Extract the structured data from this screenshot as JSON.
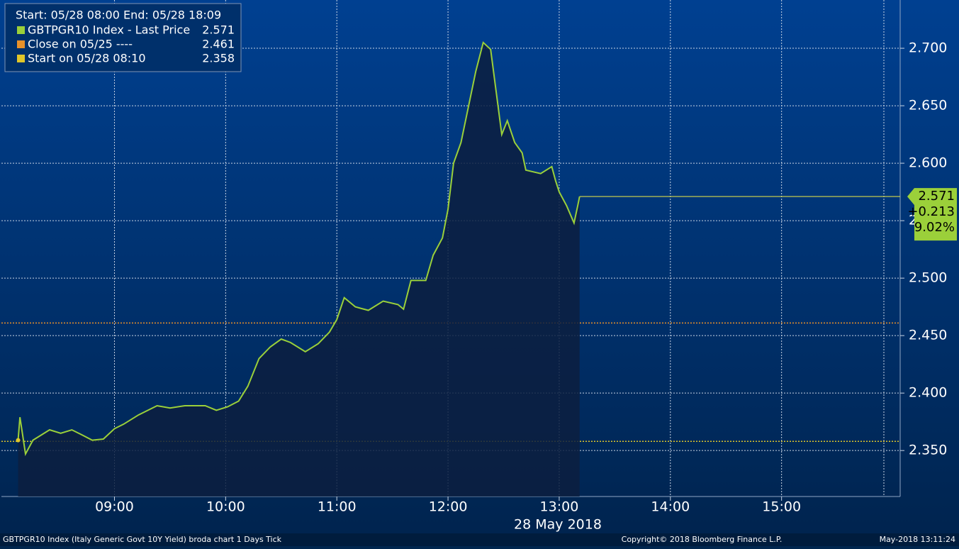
{
  "chart_data": {
    "type": "line",
    "legend_header": "Start: 05/28 08:00 End: 05/28 18:09",
    "x_label": "28 May 2018",
    "footer_left": "GBTPGR10 Index (Italy Generic Govt 10Y Yield) broda chart 1 Days  Tick",
    "footer_center": "Copyright© 2018 Bloomberg Finance L.P.",
    "footer_right": "May-2018 13:11:24",
    "xlim": [
      "07:59",
      "16:04"
    ],
    "xticks": [
      "09:00",
      "10:00",
      "11:00",
      "12:00",
      "13:00",
      "14:00",
      "15:00"
    ],
    "ylim": [
      2.31,
      2.742
    ],
    "yticks": [
      {
        "value": 2.35,
        "label": "2.350"
      },
      {
        "value": 2.4,
        "label": "2.400"
      },
      {
        "value": 2.45,
        "label": "2.450"
      },
      {
        "value": 2.5,
        "label": "2.500"
      },
      {
        "value": 2.55,
        "label": "2.550"
      },
      {
        "value": 2.6,
        "label": "2.600"
      },
      {
        "value": 2.65,
        "label": "2.650"
      },
      {
        "value": 2.7,
        "label": "2.700"
      }
    ],
    "grid": true,
    "series": [
      {
        "name": "GBTPGR10 Index - Last Price",
        "legend_value": 2.571,
        "color": "#9bd03a",
        "x": [
          "08:08",
          "08:09",
          "08:12",
          "08:16",
          "08:21",
          "08:25",
          "08:31",
          "08:37",
          "08:42",
          "08:48",
          "08:54",
          "09:00",
          "09:05",
          "09:13",
          "09:23",
          "09:30",
          "09:38",
          "09:49",
          "09:55",
          "10:01",
          "10:07",
          "10:12",
          "10:18",
          "10:24",
          "10:30",
          "10:35",
          "10:43",
          "10:50",
          "10:56",
          "11:00",
          "11:04",
          "11:10",
          "11:17",
          "11:25",
          "11:33",
          "11:36",
          "11:40",
          "11:48",
          "11:52",
          "11:57",
          "12:00",
          "12:03",
          "12:07",
          "12:11",
          "12:15",
          "12:19",
          "12:23",
          "12:26",
          "12:29",
          "12:32",
          "12:36",
          "12:40",
          "12:42",
          "12:50",
          "12:56",
          "12:58",
          "13:00",
          "13:04",
          "13:08",
          "13:10",
          "13:11"
        ],
        "values": [
          2.359,
          2.379,
          2.347,
          2.359,
          2.364,
          2.368,
          2.365,
          2.368,
          2.364,
          2.359,
          2.36,
          2.369,
          2.373,
          2.381,
          2.389,
          2.387,
          2.389,
          2.389,
          2.385,
          2.388,
          2.393,
          2.406,
          2.43,
          2.44,
          2.447,
          2.444,
          2.436,
          2.443,
          2.453,
          2.464,
          2.483,
          2.475,
          2.472,
          2.48,
          2.477,
          2.473,
          2.498,
          2.498,
          2.52,
          2.535,
          2.56,
          2.6,
          2.618,
          2.649,
          2.68,
          2.705,
          2.699,
          2.662,
          2.625,
          2.637,
          2.618,
          2.609,
          2.594,
          2.591,
          2.597,
          2.585,
          2.575,
          2.563,
          2.548,
          2.563,
          2.571
        ]
      }
    ],
    "ref_lines": [
      {
        "name": "Close on 05/25 ----",
        "color": "#e8912a",
        "value": 2.461
      },
      {
        "name": "Start on 05/28 08:10",
        "color": "#e0c62a",
        "value": 2.358
      }
    ],
    "last_box": [
      "2.571",
      "+0.213",
      "9.02%"
    ]
  }
}
